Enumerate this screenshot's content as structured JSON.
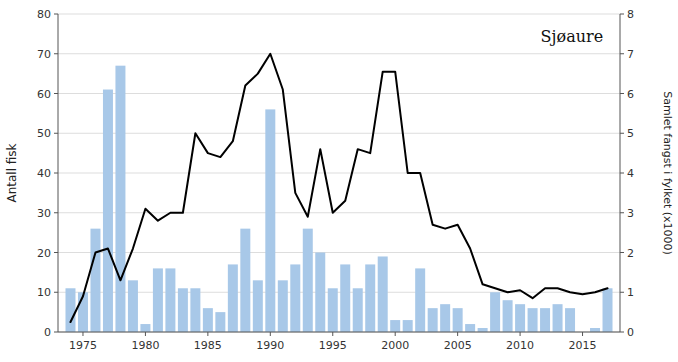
{
  "chart_data": {
    "type": "bar",
    "annotation": "Sjøaure",
    "ylabel": "Antall fisk",
    "y2label": "Samlet fangst i fylket (x1000)",
    "x": [
      1974,
      1975,
      1976,
      1977,
      1978,
      1979,
      1980,
      1981,
      1982,
      1983,
      1984,
      1985,
      1986,
      1987,
      1988,
      1989,
      1990,
      1991,
      1992,
      1993,
      1994,
      1995,
      1996,
      1997,
      1998,
      1999,
      2000,
      2001,
      2002,
      2003,
      2004,
      2005,
      2006,
      2007,
      2008,
      2009,
      2010,
      2011,
      2012,
      2013,
      2014,
      2015,
      2016,
      2017
    ],
    "series": [
      {
        "type": "bar",
        "color": "#a8c8e8",
        "values": [
          11,
          10,
          26,
          61,
          67,
          13,
          2,
          16,
          16,
          11,
          11,
          6,
          5,
          17,
          26,
          13,
          56,
          13,
          17,
          26,
          20,
          11,
          17,
          11,
          17,
          19,
          3,
          3,
          16,
          6,
          7,
          6,
          2,
          1,
          10,
          8,
          7,
          6,
          6,
          7,
          6,
          0,
          1,
          11
        ]
      },
      {
        "type": "line",
        "color": "#000000",
        "axis": "y2",
        "values": [
          0.25,
          0.9,
          2.0,
          2.1,
          1.3,
          2.1,
          3.1,
          2.8,
          3.0,
          3.0,
          5.0,
          4.5,
          4.4,
          4.8,
          6.2,
          6.5,
          7.0,
          6.1,
          3.5,
          2.9,
          4.6,
          3.0,
          3.3,
          4.6,
          4.5,
          6.55,
          6.55,
          4.0,
          4.0,
          2.7,
          2.6,
          2.7,
          2.1,
          1.2,
          1.1,
          1.0,
          1.05,
          0.85,
          1.1,
          1.1,
          1.0,
          0.95,
          1.0,
          1.1
        ]
      }
    ],
    "xlim": [
      1973.0,
      2018.0
    ],
    "xticks": [
      1975,
      1980,
      1985,
      1990,
      1995,
      2000,
      2005,
      2010,
      2015
    ],
    "ylim": [
      0,
      80
    ],
    "yticks": [
      0,
      10,
      20,
      30,
      40,
      50,
      60,
      70,
      80
    ],
    "y2lim": [
      0,
      8
    ],
    "y2ticks": [
      0,
      1,
      2,
      3,
      4,
      5,
      6,
      7,
      8
    ],
    "grid": true
  }
}
